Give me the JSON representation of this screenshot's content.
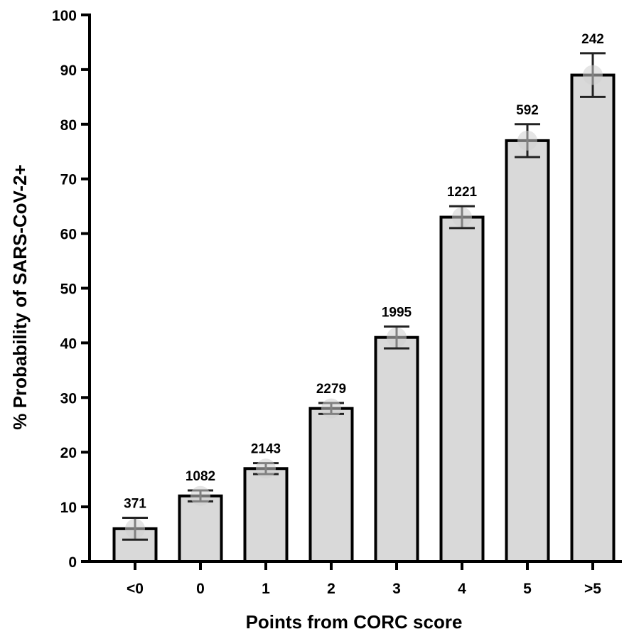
{
  "chart_data": {
    "type": "bar",
    "title": "",
    "xlabel": "Points from CORC score",
    "ylabel": "% Probability  of SARS-CoV-2+",
    "categories": [
      "<0",
      "0",
      "1",
      "2",
      "3",
      "4",
      "5",
      ">5"
    ],
    "values": [
      6,
      12,
      17,
      28,
      41,
      63,
      77,
      89
    ],
    "error_low": [
      4,
      11,
      16,
      27,
      39,
      61,
      74,
      85
    ],
    "error_high": [
      8,
      13,
      18,
      29,
      43,
      65,
      80,
      93
    ],
    "counts": [
      "371",
      "1082",
      "2143",
      "2279",
      "1995",
      "1221",
      "592",
      "242"
    ],
    "ylim": [
      0,
      100
    ],
    "yticks": [
      0,
      10,
      20,
      30,
      40,
      50,
      60,
      70,
      80,
      90,
      100
    ],
    "grid": false,
    "bar_color": "#d9d9d9",
    "edge_color": "#000000"
  }
}
